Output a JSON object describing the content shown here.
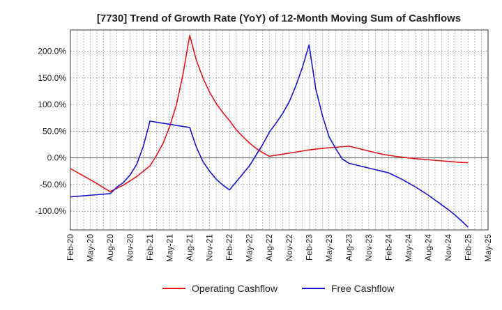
{
  "chart_data": {
    "type": "line",
    "title": "[7730]  Trend of Growth Rate (YoY) of 12-Month Moving Sum of Cashflows",
    "xlabel": "",
    "ylabel": "",
    "ylim": [
      -135,
      240
    ],
    "y_ticks": [
      -100,
      -50,
      0,
      50,
      100,
      150,
      200
    ],
    "y_tick_labels": [
      "-100.0%",
      "-50.0%",
      "0.0%",
      "50.0%",
      "100.0%",
      "150.0%",
      "200.0%"
    ],
    "x_tick_labels": [
      "Feb-20",
      "May-20",
      "Aug-20",
      "Nov-20",
      "Feb-21",
      "May-21",
      "Aug-21",
      "Nov-21",
      "Feb-22",
      "May-22",
      "Aug-22",
      "Nov-22",
      "Feb-23",
      "May-23",
      "Aug-23",
      "Nov-23",
      "Feb-24",
      "May-24",
      "Aug-24",
      "Nov-24",
      "Feb-25",
      "May-25"
    ],
    "grid": true,
    "legend_position": "bottom",
    "x": [
      "Feb-20",
      "Mar-20",
      "Apr-20",
      "May-20",
      "Jun-20",
      "Jul-20",
      "Aug-20",
      "Sep-20",
      "Oct-20",
      "Nov-20",
      "Dec-20",
      "Jan-21",
      "Feb-21",
      "Mar-21",
      "Apr-21",
      "May-21",
      "Jun-21",
      "Jul-21",
      "Aug-21",
      "Sep-21",
      "Oct-21",
      "Nov-21",
      "Dec-21",
      "Jan-22",
      "Feb-22",
      "Mar-22",
      "Apr-22",
      "May-22",
      "Jun-22",
      "Jul-22",
      "Aug-22",
      "Sep-22",
      "Oct-22",
      "Nov-22",
      "Dec-22",
      "Jan-23",
      "Feb-23",
      "Mar-23",
      "Apr-23",
      "May-23",
      "Jun-23",
      "Jul-23",
      "Aug-23",
      "Sep-23",
      "Oct-23",
      "Nov-23",
      "Dec-23",
      "Jan-24",
      "Feb-24",
      "Mar-24",
      "Apr-24",
      "May-24",
      "Jun-24",
      "Jul-24",
      "Aug-24",
      "Sep-24",
      "Oct-24",
      "Nov-24",
      "Dec-24",
      "Jan-25",
      "Feb-25"
    ],
    "series": [
      {
        "name": "Operating Cashflow",
        "color": "#e8141b",
        "values": [
          -20,
          -27,
          -34,
          -41,
          -48,
          -56,
          -63,
          -57,
          -51,
          -43,
          -35,
          -25,
          -15,
          5,
          28,
          60,
          100,
          158,
          230,
          183,
          150,
          123,
          102,
          85,
          70,
          53,
          40,
          28,
          18,
          10,
          3,
          5,
          7,
          9,
          11,
          13,
          15,
          16.5,
          18,
          19,
          20,
          21,
          22,
          19,
          16,
          13,
          10,
          7,
          5,
          3,
          1.5,
          0,
          -1.5,
          -2.5,
          -3.5,
          -4.5,
          -5.5,
          -6.5,
          -7.5,
          -8.5,
          -9
        ]
      },
      {
        "name": "Free Cashflow",
        "color": "#1414d2",
        "values": [
          -73,
          -72,
          -71,
          -70,
          -69,
          -68,
          -67,
          -55,
          -46,
          -32,
          -12,
          22,
          69,
          67,
          65,
          63,
          61,
          59,
          57,
          20,
          -7,
          -25,
          -40,
          -51,
          -60,
          -45,
          -30,
          -15,
          5,
          25,
          48,
          65,
          83,
          105,
          135,
          170,
          212,
          130,
          80,
          40,
          18,
          -2,
          -10,
          -13,
          -16,
          -19,
          -22,
          -25,
          -28,
          -34,
          -40,
          -47,
          -54,
          -62,
          -70,
          -79,
          -88,
          -97,
          -107,
          -118,
          -130
        ]
      }
    ]
  }
}
